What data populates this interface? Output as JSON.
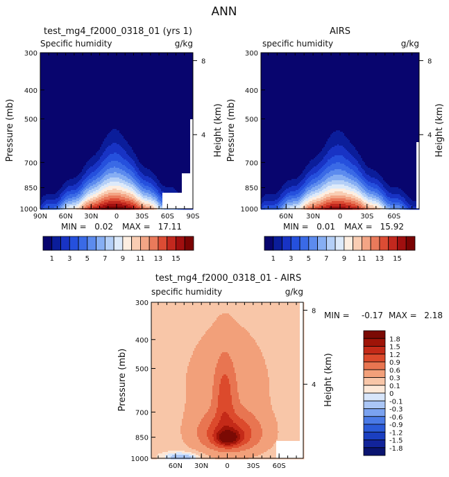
{
  "figure": {
    "title": "ANN"
  },
  "colors": {
    "abs_fills": [
      "#08056e",
      "#0b1d9a",
      "#1833c4",
      "#2550dd",
      "#3a6ae6",
      "#5c8bee",
      "#86aef3",
      "#b4cff7",
      "#ddeafa",
      "#fdeee1",
      "#f9cdb3",
      "#f3a585",
      "#ea7a5b",
      "#dc4c34",
      "#c2281e",
      "#a00f0f",
      "#7a0303"
    ],
    "diff_fills": [
      "#0a1470",
      "#12249a",
      "#1b3fc0",
      "#2b5bd8",
      "#4a7ae6",
      "#7aa2f0",
      "#aac6f6",
      "#d8e6fb",
      "#fde8d8",
      "#f8c6a8",
      "#f2a07a",
      "#e87551",
      "#dc4a2c",
      "#c42a18",
      "#9f1408",
      "#7b0a04"
    ],
    "diff_levels": [
      -1.8,
      -1.5,
      -1.2,
      -0.9,
      -0.6,
      -0.3,
      -0.1,
      0,
      0.1,
      0.3,
      0.6,
      0.9,
      1.2,
      1.5,
      1.8
    ]
  },
  "chart_data": [
    {
      "type": "heatmap",
      "id": "model",
      "title": "test_mg4_f2000_0318_01 (yrs 1)",
      "left_label": "Specific humidity",
      "units": "g/kg",
      "ylabel": "Pressure (mb)",
      "y2label": "Height (km)",
      "xlim": [
        90,
        -90
      ],
      "xticks": [
        {
          "v": 90,
          "label": "90N"
        },
        {
          "v": 60,
          "label": "60N"
        },
        {
          "v": 30,
          "label": "30N"
        },
        {
          "v": 0,
          "label": "0"
        },
        {
          "v": -30,
          "label": "30S"
        },
        {
          "v": -60,
          "label": "60S"
        },
        {
          "v": -90,
          "label": "90S"
        }
      ],
      "yticks": [
        300,
        400,
        500,
        700,
        850,
        1000
      ],
      "y2ticks": [
        {
          "v": 8,
          "label": "8"
        },
        {
          "v": 4,
          "label": "4"
        }
      ],
      "stats": {
        "min_label": "MIN =",
        "min": "0.02",
        "max_label": "MAX =",
        "max": "17.11"
      },
      "peak": 17.1,
      "colorbar": {
        "orientation": "horizontal",
        "levels": [
          1,
          2,
          3,
          4,
          5,
          6,
          7,
          8,
          9,
          10,
          11,
          12,
          13,
          14,
          15,
          16
        ],
        "tick_labels": [
          "1",
          "3",
          "5",
          "7",
          "9",
          "11",
          "13",
          "15"
        ]
      }
    },
    {
      "type": "heatmap",
      "id": "obs",
      "title": "AIRS",
      "left_label": "specific humidity",
      "units": "g/kg",
      "ylabel": "Pressure (mb)",
      "y2label": "Height (km)",
      "xlim": [
        88,
        -88
      ],
      "xticks": [
        {
          "v": 60,
          "label": "60N"
        },
        {
          "v": 30,
          "label": "30N"
        },
        {
          "v": 0,
          "label": "0"
        },
        {
          "v": -30,
          "label": "30S"
        },
        {
          "v": -60,
          "label": "60S"
        }
      ],
      "yticks": [
        300,
        400,
        500,
        700,
        850,
        1000
      ],
      "y2ticks": [
        {
          "v": 8,
          "label": "8"
        },
        {
          "v": 4,
          "label": "4"
        }
      ],
      "stats": {
        "min_label": "MIN =",
        "min": "0.01",
        "max_label": "MAX =",
        "max": "15.92"
      },
      "peak": 15.9,
      "colorbar": {
        "orientation": "horizontal",
        "levels": [
          1,
          2,
          3,
          4,
          5,
          6,
          7,
          8,
          9,
          10,
          11,
          12,
          13,
          14,
          15,
          16
        ],
        "tick_labels": [
          "1",
          "3",
          "5",
          "7",
          "9",
          "11",
          "13",
          "15"
        ]
      }
    },
    {
      "type": "heatmap",
      "id": "diff",
      "title": "test_mg4_f2000_0318_01 - AIRS",
      "left_label": "specific humidity",
      "units": "g/kg",
      "ylabel": "Pressure (mb)",
      "y2label": "Height (km)",
      "xlim": [
        88,
        -88
      ],
      "xticks": [
        {
          "v": 60,
          "label": "60N"
        },
        {
          "v": 30,
          "label": "30N"
        },
        {
          "v": 0,
          "label": "0"
        },
        {
          "v": -30,
          "label": "30S"
        },
        {
          "v": -60,
          "label": "60S"
        }
      ],
      "yticks": [
        300,
        400,
        500,
        700,
        850,
        1000
      ],
      "y2ticks": [
        {
          "v": 8,
          "label": "8"
        },
        {
          "v": 4,
          "label": "4"
        }
      ],
      "stats": {
        "min_label": "MIN =",
        "min": "-0.17",
        "max_label": "MAX =",
        "max": "2.18"
      },
      "colorbar": {
        "orientation": "vertical",
        "tick_labels": [
          "1.8",
          "1.5",
          "1.2",
          "0.9",
          "0.6",
          "0.3",
          "0.1",
          "0",
          "-0.1",
          "-0.3",
          "-0.6",
          "-0.9",
          "-1.2",
          "-1.5",
          "-1.8"
        ]
      }
    }
  ]
}
